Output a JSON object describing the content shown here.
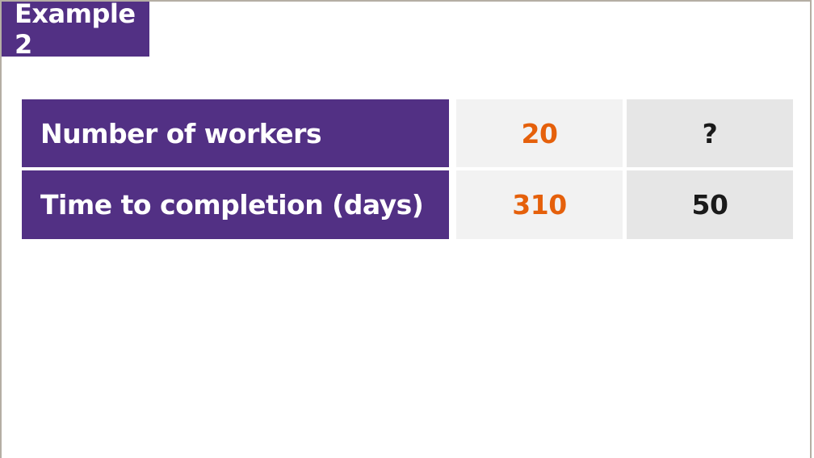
{
  "title": "Example 2",
  "colors": {
    "purple": "#523084",
    "orange": "#e5600b",
    "cell_light": "#f2f2f2",
    "cell_dark": "#e6e6e6"
  },
  "table": {
    "rows": [
      {
        "label": "Number of workers",
        "values": [
          "20",
          "?"
        ]
      },
      {
        "label": "Time to completion (days)",
        "values": [
          "310",
          "50"
        ]
      }
    ]
  }
}
